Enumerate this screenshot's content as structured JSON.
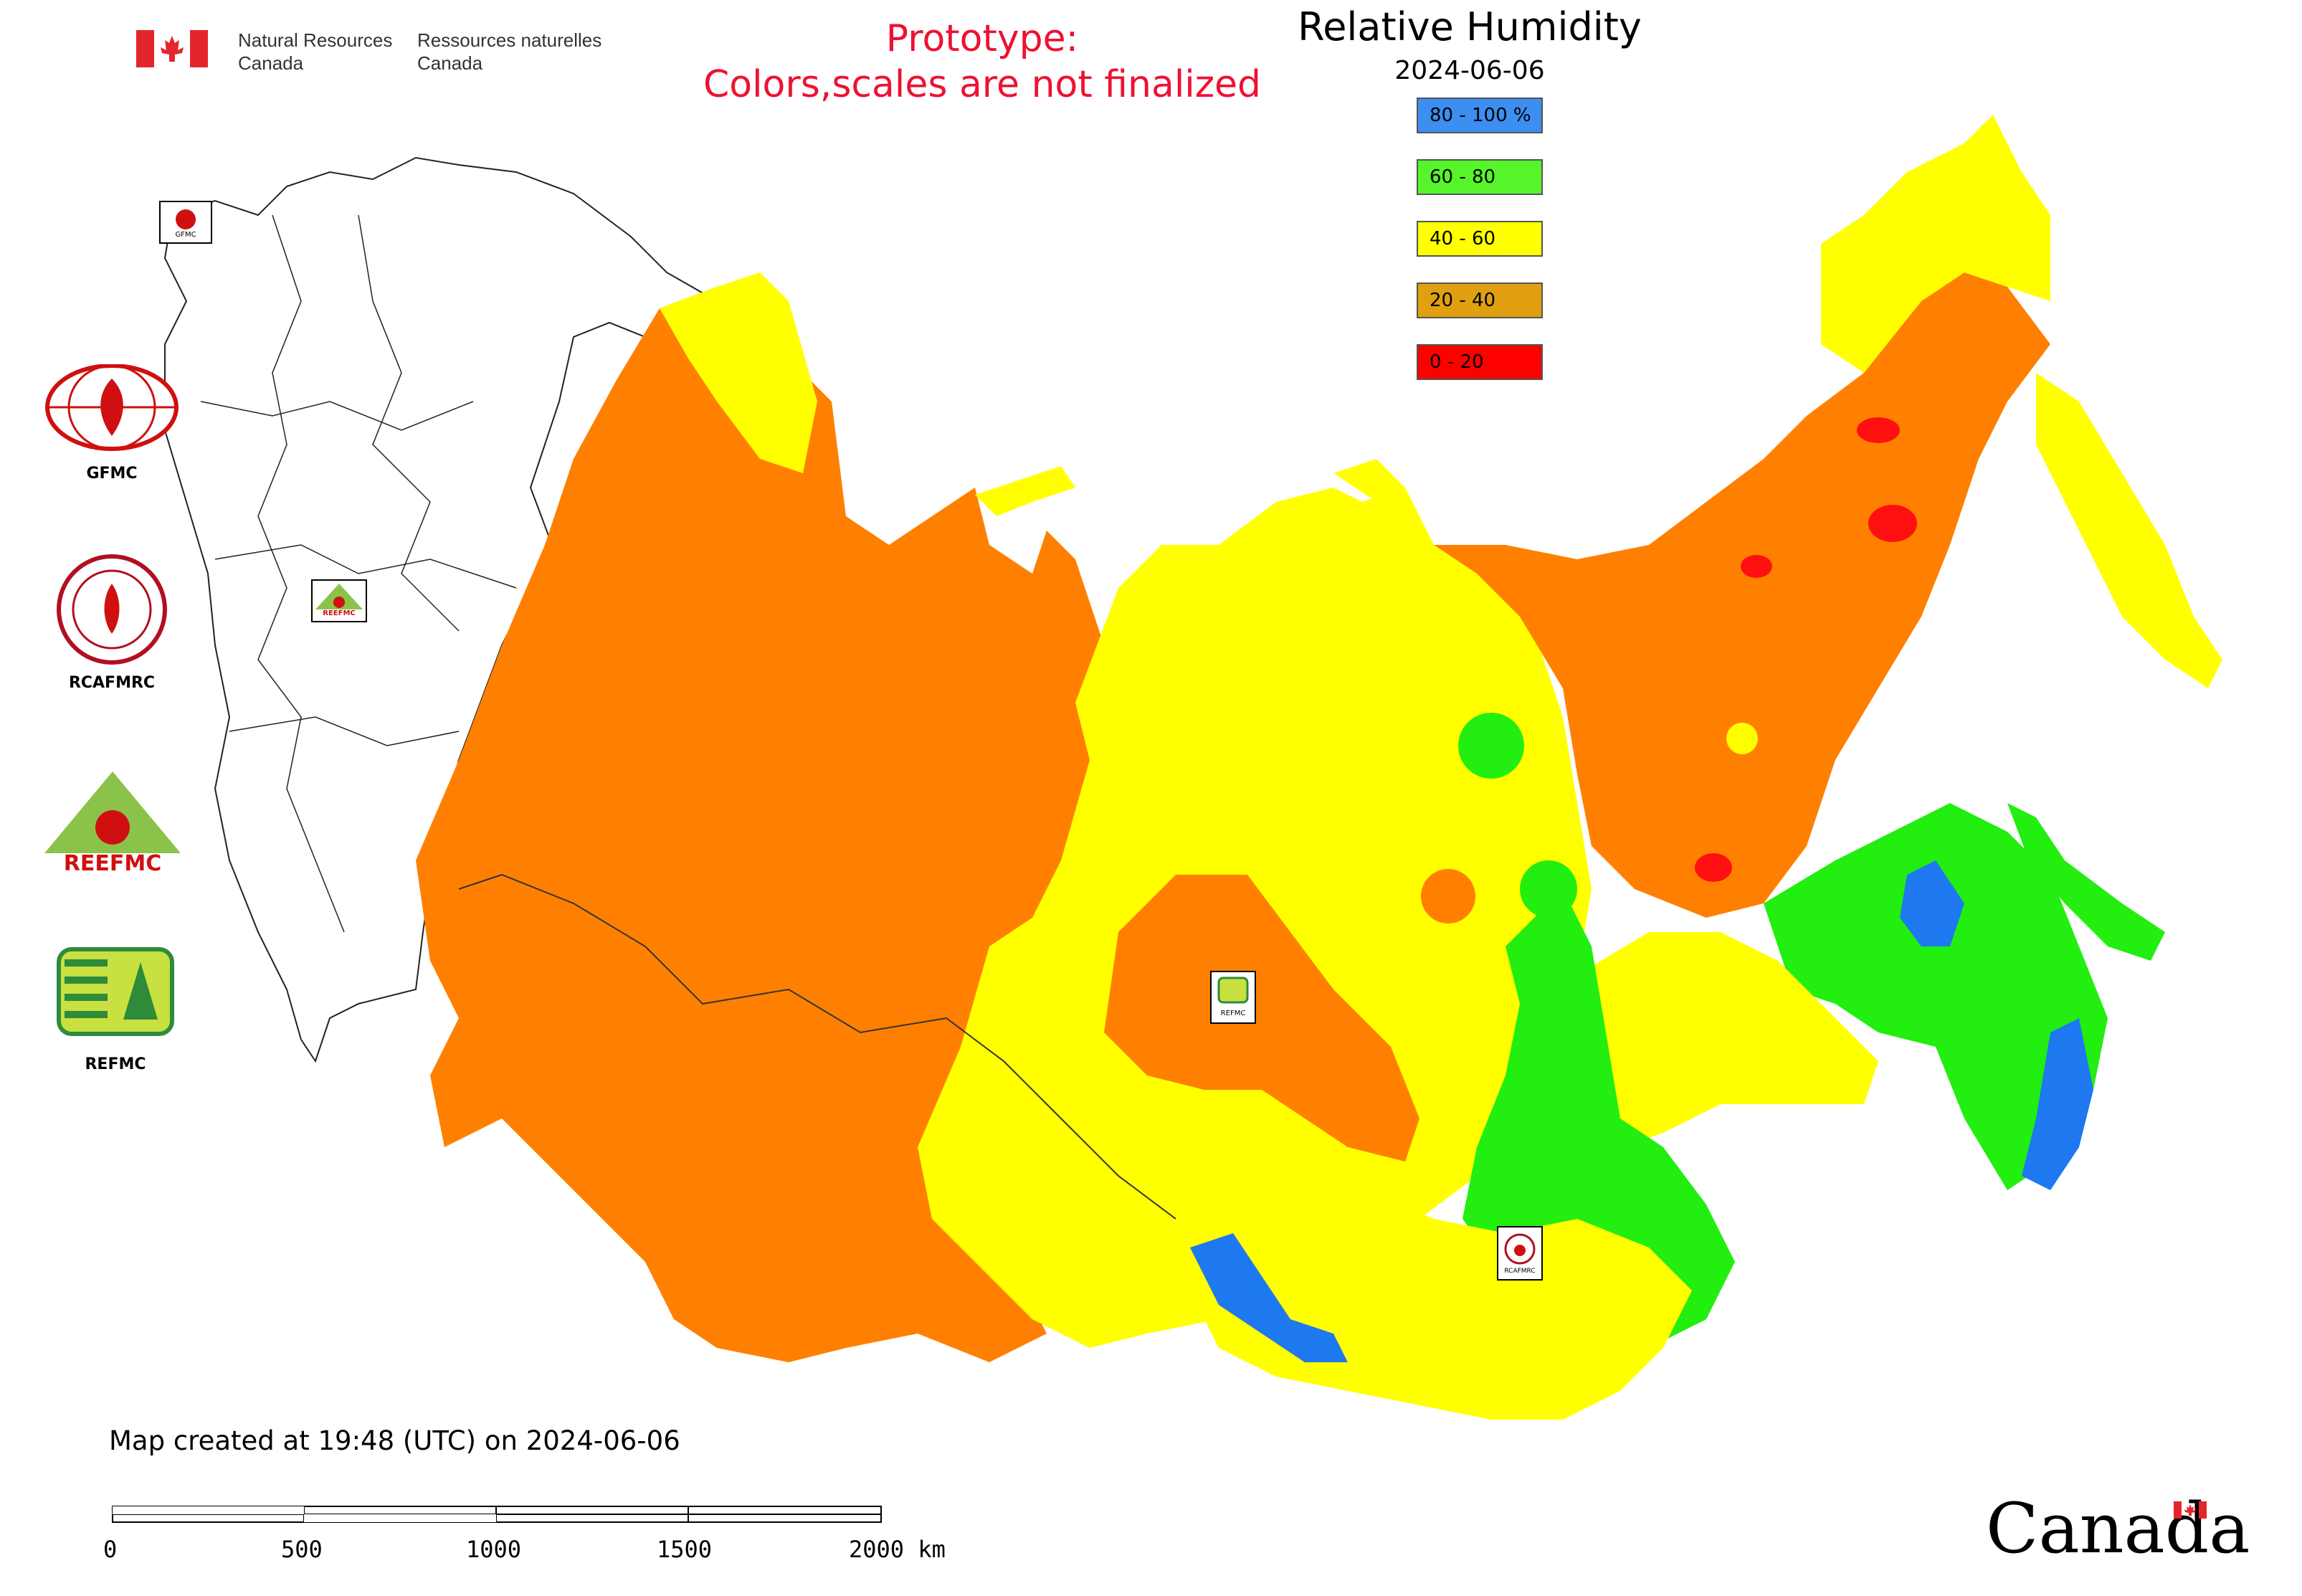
{
  "header": {
    "agency_en_line1": "Natural Resources",
    "agency_en_line2": "Canada",
    "agency_fr_line1": "Ressources naturelles",
    "agency_fr_line2": "Canada"
  },
  "prototype_notice": {
    "line1": "Prototype:",
    "line2": "Colors,scales are not finalized",
    "color": "#ee1133"
  },
  "title": "Relative Humidity",
  "date": "2024-06-06",
  "legend": [
    {
      "label": "80 - 100 %",
      "color": "#3c8ef0"
    },
    {
      "label": "60 - 80",
      "color": "#55f52a"
    },
    {
      "label": "40 - 60",
      "color": "#ffff00"
    },
    {
      "label": "20 - 40",
      "color": "#e0a010"
    },
    {
      "label": "0 - 20",
      "color": "#ff0000"
    }
  ],
  "logos": [
    {
      "label": "GFMC"
    },
    {
      "label": "RCAFMRC"
    },
    {
      "label": "REEFMC"
    },
    {
      "label": "REFMC"
    }
  ],
  "map_markers": {
    "gfmc": "GFMC",
    "reefmc": "REEFMC",
    "refmc": "REFMC",
    "rcafmrc": "RCAFMRC"
  },
  "footer": {
    "created_text": "Map created at 19:48 (UTC) on 2024-06-06",
    "scale_labels": [
      "0",
      "500",
      "1000",
      "1500",
      "2000 km"
    ],
    "wordmark": "Canada"
  },
  "map_colors": {
    "orange": "#ff8000",
    "yellow": "#ffff00",
    "green": "#22ee10",
    "blue": "#1e78f0",
    "red": "#ff1010"
  }
}
